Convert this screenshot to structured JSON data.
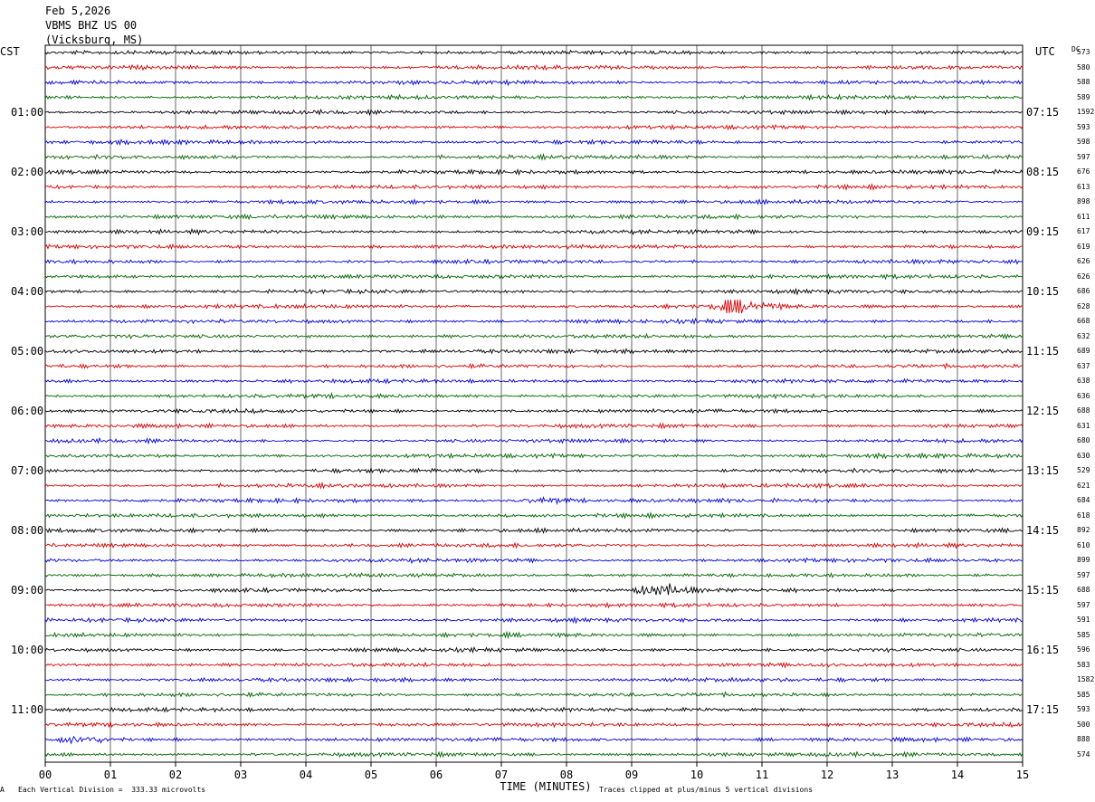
{
  "header": {
    "date": "Feb 5,2026",
    "station": "VBMS BHZ US 00",
    "location": "(Vicksburg, MS)"
  },
  "left_tz": "CST",
  "right_tz": "UTC",
  "dc_header": "DC",
  "footer": {
    "scale_note": "Each Vertical Division =  333.33 microvolts",
    "clip_note": "Traces clipped at plus/minus 5 vertical divisions",
    "corner_mark": "A"
  },
  "trace_colors": [
    "#000000",
    "#dd0000",
    "#0000dd",
    "#006600"
  ],
  "chart_data": {
    "type": "line",
    "title": "VBMS BHZ US 00",
    "xlabel": "TIME (MINUTES)",
    "ylabel": "",
    "x_ticks": [
      "00",
      "01",
      "02",
      "03",
      "04",
      "05",
      "06",
      "07",
      "08",
      "09",
      "10",
      "11",
      "12",
      "13",
      "14",
      "15"
    ],
    "xlim": [
      0,
      15
    ],
    "left_hour_labels": [
      "01:00",
      "02:00",
      "03:00",
      "04:00",
      "05:00",
      "06:00",
      "07:00",
      "08:00",
      "09:00",
      "10:00",
      "11:00"
    ],
    "right_hour_labels": [
      "07:15",
      "08:15",
      "09:15",
      "10:15",
      "11:15",
      "12:15",
      "13:15",
      "14:15",
      "15:15",
      "16:15",
      "17:15"
    ],
    "dc_values": [
      "573",
      "580",
      "588",
      "589",
      "1592",
      "593",
      "598",
      "597",
      "676",
      "613",
      "898",
      "611",
      "617",
      "619",
      "626",
      "626",
      "686",
      "628",
      "668",
      "632",
      "689",
      "637",
      "638",
      "636",
      "688",
      "631",
      "680",
      "630",
      "529",
      "621",
      "684",
      "618",
      "892",
      "610",
      "899",
      "597",
      "688",
      "597",
      "591",
      "585",
      "596",
      "583",
      "1582",
      "585",
      "593",
      "500",
      "888",
      "574"
    ],
    "events": [
      {
        "trace": 17,
        "start_min": 10.2,
        "end_min": 11.5,
        "amp": 3.0
      },
      {
        "trace": 36,
        "start_min": 9.0,
        "end_min": 10.2,
        "amp": 2.5
      },
      {
        "trace": 30,
        "start_min": 7.2,
        "end_min": 8.5,
        "amp": 1.6
      },
      {
        "trace": 46,
        "start_min": 0.2,
        "end_min": 1.4,
        "amp": 1.6
      }
    ]
  }
}
